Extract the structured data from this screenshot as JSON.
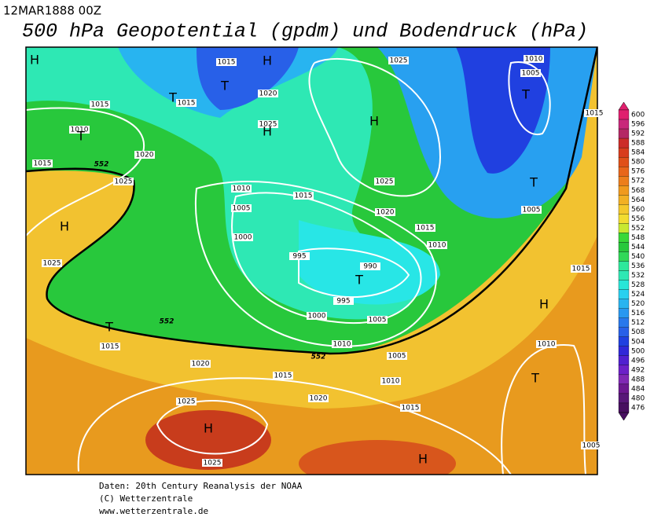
{
  "header": {
    "date": "12MAR1888 00Z",
    "title": "500 hPa Geopotential (gpdm) und Bodendruck (hPa)"
  },
  "map": {
    "isobar_labels": [
      1015,
      1015,
      1015,
      1010,
      1020,
      1025,
      1015,
      1020,
      1025,
      1010,
      1015,
      1005,
      1000,
      995,
      990,
      995,
      1000,
      1005,
      1010,
      1005,
      1010,
      1015,
      1020,
      1015,
      1020,
      1025,
      1025,
      1015,
      1025,
      1025,
      1025,
      1020,
      1015,
      1010,
      1010,
      1005,
      1005,
      1015,
      1010,
      1015,
      1005
    ],
    "centers": [
      "H",
      "H",
      "T",
      "T",
      "T",
      "H",
      "H",
      "H",
      "T",
      "T",
      "T",
      "T",
      "H",
      "T",
      "H",
      "H"
    ],
    "contour_labels": [
      552,
      552,
      552
    ]
  },
  "legend": {
    "levels": [
      600,
      596,
      592,
      588,
      584,
      580,
      576,
      572,
      568,
      564,
      560,
      556,
      552,
      548,
      544,
      540,
      536,
      532,
      528,
      524,
      520,
      516,
      512,
      508,
      504,
      500,
      496,
      492,
      488,
      484,
      480,
      476
    ]
  },
  "footer": {
    "lines": [
      "Daten: 20th Century Reanalysis der NOAA",
      "(C) Wetterzentrale",
      "www.wetterzentrale.de"
    ]
  }
}
